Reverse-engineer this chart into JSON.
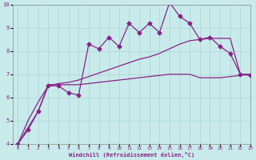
{
  "xlabel": "Windchill (Refroidissement éolien,°C)",
  "x": [
    0,
    1,
    2,
    3,
    4,
    5,
    6,
    7,
    8,
    9,
    10,
    11,
    12,
    13,
    14,
    15,
    16,
    17,
    18,
    19,
    20,
    21,
    22,
    23
  ],
  "line1_y": [
    4.0,
    4.6,
    5.4,
    6.5,
    6.5,
    6.2,
    6.1,
    8.3,
    8.1,
    8.6,
    8.2,
    9.2,
    8.8,
    9.2,
    8.8,
    10.1,
    9.5,
    9.2,
    8.5,
    8.6,
    8.2,
    7.9,
    7.0,
    6.95
  ],
  "line2_y": [
    4.0,
    4.7,
    5.4,
    6.55,
    6.55,
    6.55,
    6.55,
    6.6,
    6.65,
    6.7,
    6.75,
    6.8,
    6.85,
    6.9,
    6.95,
    7.0,
    7.0,
    7.0,
    6.85,
    6.85,
    6.85,
    6.9,
    6.95,
    7.0
  ],
  "line3_y": [
    4.0,
    5.0,
    5.8,
    6.5,
    6.6,
    6.65,
    6.75,
    6.9,
    7.05,
    7.2,
    7.35,
    7.5,
    7.65,
    7.75,
    7.9,
    8.1,
    8.3,
    8.45,
    8.5,
    8.55,
    8.55,
    8.55,
    7.0,
    7.0
  ],
  "ylim": [
    4,
    10
  ],
  "xlim": [
    -0.5,
    23
  ],
  "yticks": [
    4,
    5,
    6,
    7,
    8,
    9,
    10
  ],
  "xticks": [
    0,
    1,
    2,
    3,
    4,
    5,
    6,
    7,
    8,
    9,
    10,
    11,
    12,
    13,
    14,
    15,
    16,
    17,
    18,
    19,
    20,
    21,
    22,
    23
  ],
  "line_color": "#882288",
  "bg_color": "#c8eaea",
  "grid_color": "#b0d8d8",
  "marker_size": 2.5
}
